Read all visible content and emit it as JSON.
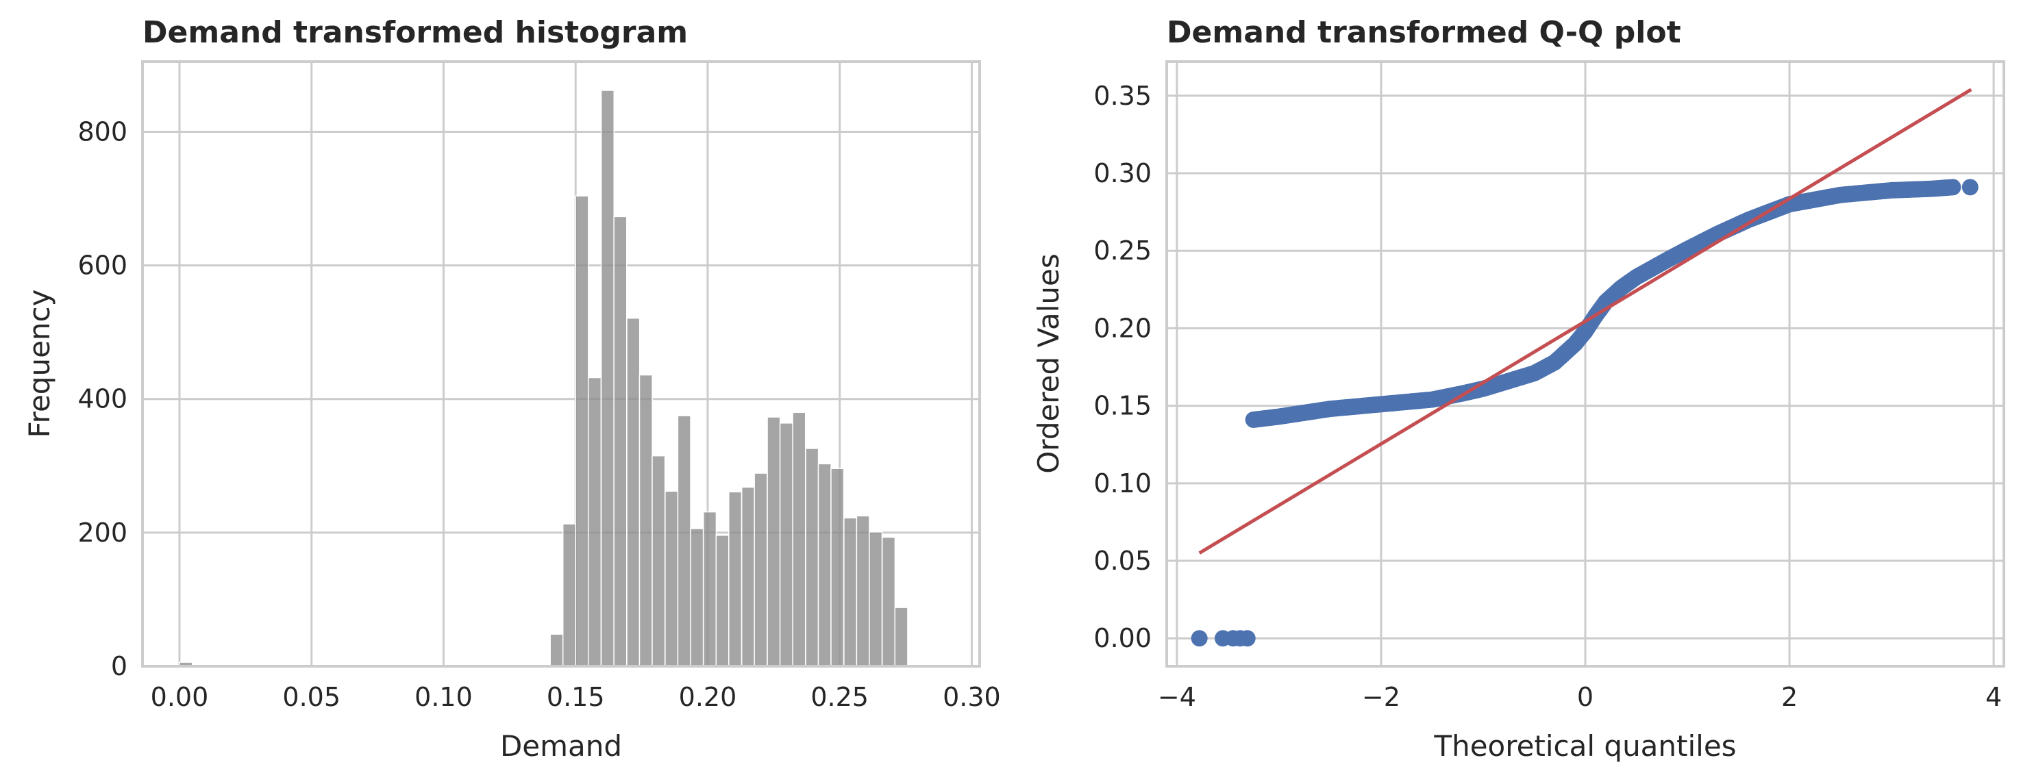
{
  "chart_data": [
    {
      "type": "bar",
      "title": "Demand transformed histogram",
      "xlabel": "Demand",
      "ylabel": "Frequency",
      "xlim": [
        -0.014,
        0.303
      ],
      "ylim": [
        0,
        905
      ],
      "xticks": [
        0.0,
        0.05,
        0.1,
        0.15,
        0.2,
        0.25,
        0.3
      ],
      "xtick_labels": [
        "0.00",
        "0.05",
        "0.10",
        "0.15",
        "0.20",
        "0.25",
        "0.30"
      ],
      "yticks": [
        0,
        200,
        400,
        600,
        800
      ],
      "ytick_labels": [
        "0",
        "200",
        "400",
        "600",
        "800"
      ],
      "grid": true,
      "bar_color": "#8c8c8c",
      "bin_width": 0.00484,
      "bins": [
        {
          "x0": 0.0,
          "count": 6
        },
        {
          "x0": 0.00484,
          "count": 1
        },
        {
          "x0": 0.1404,
          "count": 48
        },
        {
          "x0": 0.1452,
          "count": 213
        },
        {
          "x0": 0.15,
          "count": 704
        },
        {
          "x0": 0.1548,
          "count": 432
        },
        {
          "x0": 0.1597,
          "count": 862
        },
        {
          "x0": 0.1645,
          "count": 673
        },
        {
          "x0": 0.1694,
          "count": 521
        },
        {
          "x0": 0.1742,
          "count": 436
        },
        {
          "x0": 0.179,
          "count": 315
        },
        {
          "x0": 0.1839,
          "count": 262
        },
        {
          "x0": 0.1887,
          "count": 375
        },
        {
          "x0": 0.1935,
          "count": 206
        },
        {
          "x0": 0.1984,
          "count": 231
        },
        {
          "x0": 0.2032,
          "count": 196
        },
        {
          "x0": 0.208,
          "count": 261
        },
        {
          "x0": 0.2129,
          "count": 268
        },
        {
          "x0": 0.2177,
          "count": 289
        },
        {
          "x0": 0.2226,
          "count": 373
        },
        {
          "x0": 0.2274,
          "count": 364
        },
        {
          "x0": 0.2322,
          "count": 380
        },
        {
          "x0": 0.2371,
          "count": 326
        },
        {
          "x0": 0.2419,
          "count": 303
        },
        {
          "x0": 0.2467,
          "count": 296
        },
        {
          "x0": 0.2516,
          "count": 222
        },
        {
          "x0": 0.2564,
          "count": 225
        },
        {
          "x0": 0.2612,
          "count": 201
        },
        {
          "x0": 0.2661,
          "count": 193
        },
        {
          "x0": 0.2709,
          "count": 88
        }
      ]
    },
    {
      "type": "scatter",
      "title": "Demand transformed Q-Q plot",
      "xlabel": "Theoretical quantiles",
      "ylabel": "Ordered Values",
      "xlim": [
        -4.1,
        4.1
      ],
      "ylim": [
        -0.018,
        0.372
      ],
      "xticks": [
        -4,
        -2,
        0,
        2,
        4
      ],
      "xtick_labels": [
        "−4",
        "−2",
        "0",
        "2",
        "4"
      ],
      "yticks": [
        0.0,
        0.05,
        0.1,
        0.15,
        0.2,
        0.25,
        0.3,
        0.35
      ],
      "ytick_labels": [
        "0.00",
        "0.05",
        "0.10",
        "0.15",
        "0.20",
        "0.25",
        "0.30",
        "0.35"
      ],
      "grid": true,
      "point_color": "#4c72b0",
      "line_color": "#c44e52",
      "fit_line": {
        "x": [
          -3.78,
          3.78
        ],
        "y": [
          0.055,
          0.354
        ]
      },
      "outliers": {
        "x": [
          -3.78,
          -3.55,
          -3.45,
          -3.38,
          -3.31
        ],
        "y": [
          0.0,
          0.0,
          0.0,
          0.0,
          0.0
        ]
      },
      "curve": {
        "x": [
          -3.25,
          -3.0,
          -2.5,
          -2.0,
          -1.5,
          -1.2,
          -1.0,
          -0.8,
          -0.5,
          -0.3,
          -0.1,
          0.0,
          0.1,
          0.2,
          0.35,
          0.5,
          0.8,
          1.0,
          1.3,
          1.6,
          2.0,
          2.5,
          3.0,
          3.4,
          3.6
        ],
        "y": [
          0.141,
          0.143,
          0.148,
          0.151,
          0.154,
          0.158,
          0.161,
          0.165,
          0.171,
          0.178,
          0.19,
          0.198,
          0.208,
          0.217,
          0.226,
          0.233,
          0.244,
          0.251,
          0.261,
          0.27,
          0.28,
          0.286,
          0.289,
          0.29,
          0.291
        ]
      },
      "last_point": {
        "x": 3.77,
        "y": 0.291
      }
    }
  ]
}
